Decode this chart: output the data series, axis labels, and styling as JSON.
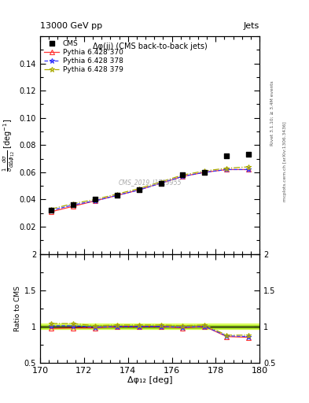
{
  "title_left": "13000 GeV pp",
  "title_right": "Jets",
  "plot_title": "Δφ(jj) (CMS back-to-back jets)",
  "xlabel": "Δφ₁₂ [deg]",
  "ylabel_main": "$\\frac{1}{\\sigma}\\frac{d\\sigma}{d\\Delta\\phi_{12}}$ [deg$^{-1}$]",
  "ylabel_ratio": "Ratio to CMS",
  "right_label_top": "Rivet 3.1.10; ≥ 3.4M events",
  "right_label_bot": "mcplots.cern.ch [arXiv:1306.3436]",
  "watermark": "CMS_2019_I1719955",
  "xlim": [
    170,
    180
  ],
  "ylim_main": [
    0.0,
    0.16
  ],
  "ylim_ratio": [
    0.5,
    2.0
  ],
  "yticks_main": [
    0.02,
    0.04,
    0.06,
    0.08,
    0.1,
    0.12,
    0.14
  ],
  "yticks_ratio": [
    0.5,
    1.0,
    1.5,
    2.0
  ],
  "cms_x": [
    170.5,
    171.5,
    172.5,
    173.5,
    174.5,
    175.5,
    176.5,
    177.5,
    178.5,
    179.5
  ],
  "cms_y": [
    0.032,
    0.036,
    0.04,
    0.043,
    0.047,
    0.052,
    0.058,
    0.06,
    0.072,
    0.073
  ],
  "py370_x": [
    170.5,
    171.5,
    172.5,
    173.5,
    174.5,
    175.5,
    176.5,
    177.5,
    178.5,
    179.5
  ],
  "py370_y": [
    0.031,
    0.035,
    0.039,
    0.043,
    0.047,
    0.052,
    0.057,
    0.06,
    0.062,
    0.062
  ],
  "py378_x": [
    170.5,
    171.5,
    172.5,
    173.5,
    174.5,
    175.5,
    176.5,
    177.5,
    178.5,
    179.5
  ],
  "py378_y": [
    0.032,
    0.036,
    0.039,
    0.043,
    0.047,
    0.052,
    0.057,
    0.06,
    0.062,
    0.062
  ],
  "py379_x": [
    170.5,
    171.5,
    172.5,
    173.5,
    174.5,
    175.5,
    176.5,
    177.5,
    178.5,
    179.5
  ],
  "py379_y": [
    0.033,
    0.037,
    0.04,
    0.044,
    0.048,
    0.053,
    0.058,
    0.061,
    0.063,
    0.064
  ],
  "ratio_370_y": [
    0.97,
    0.98,
    0.98,
    1.0,
    1.0,
    1.0,
    0.98,
    1.0,
    0.86,
    0.85
  ],
  "ratio_378_y": [
    1.01,
    1.01,
    0.99,
    1.0,
    1.0,
    1.0,
    0.99,
    1.0,
    0.87,
    0.86
  ],
  "ratio_379_y": [
    1.04,
    1.04,
    1.01,
    1.02,
    1.02,
    1.02,
    1.01,
    1.02,
    0.88,
    0.88
  ],
  "color_370": "#ff3333",
  "color_378": "#3333ff",
  "color_379": "#aaaa00",
  "color_cms": "#000000",
  "band_color": "#ccff00",
  "band_alpha": 0.5,
  "band_inner_color": "#88cc00",
  "band_inner_alpha": 0.6,
  "band_y1": 0.96,
  "band_y2": 1.04,
  "band_inner_y1": 0.98,
  "band_inner_y2": 1.02
}
